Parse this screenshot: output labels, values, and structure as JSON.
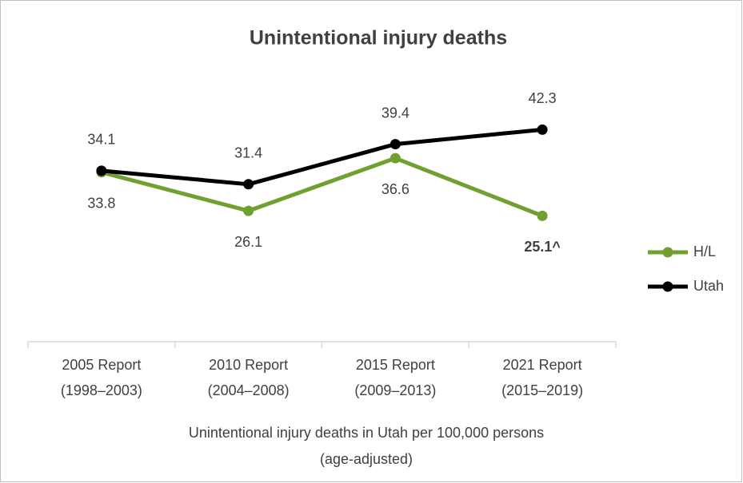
{
  "chart_data": {
    "type": "line",
    "title": "Unintentional injury deaths",
    "x_label": [
      "Unintentional injury deaths in Utah per 100,000 persons",
      "(age-adjusted)"
    ],
    "categories": [
      [
        "2005 Report",
        "(1998–2003)"
      ],
      [
        "2010 Report",
        "(2004–2008)"
      ],
      [
        "2015 Report",
        "(2009–2013)"
      ],
      [
        "2021 Report",
        "(2015–2019)"
      ]
    ],
    "series": [
      {
        "name": "H/L",
        "color": "#70a030",
        "values": [
          33.8,
          26.1,
          36.6,
          25.1
        ],
        "value_labels": [
          "33.8",
          "26.1",
          "36.6",
          "25.1^"
        ],
        "label_position": "below"
      },
      {
        "name": "Utah",
        "color": "#000000",
        "values": [
          34.1,
          31.4,
          39.4,
          42.3
        ],
        "label_position": "above"
      }
    ],
    "ylim": [
      0,
      50
    ],
    "legend": "right"
  }
}
